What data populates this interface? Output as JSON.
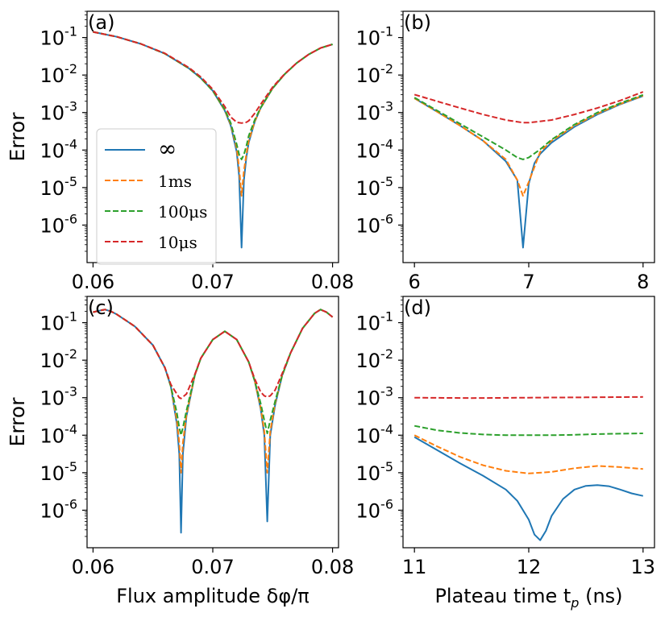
{
  "figure": {
    "y_axis_label": "Error",
    "y_tick_labels": [
      "10-1",
      "10-2",
      "10-3",
      "10-4",
      "10-5",
      "10-6"
    ],
    "legend": [
      {
        "label": "∞",
        "color": "#1f77b4",
        "dashed": false
      },
      {
        "label": "1ms",
        "color": "#ff7f0e",
        "dashed": true
      },
      {
        "label": "100μs",
        "color": "#2ca02c",
        "dashed": true
      },
      {
        "label": "10μs",
        "color": "#d62728",
        "dashed": true
      }
    ]
  },
  "chart_data": [
    {
      "panel": "(a)",
      "type": "line",
      "xlim": [
        0.0595,
        0.0805
      ],
      "ylim_log10": [
        -7.0,
        -0.3
      ],
      "x_ticks": [
        0.06,
        0.07,
        0.08
      ],
      "x_tick_labels": [
        "0.06",
        "0.07",
        "0.08"
      ],
      "xlabel": "",
      "series": [
        {
          "name": "∞",
          "color": "#1f77b4",
          "dash": false,
          "x": [
            0.06,
            0.062,
            0.064,
            0.066,
            0.068,
            0.069,
            0.07,
            0.071,
            0.0715,
            0.072,
            0.0722,
            0.0724,
            0.0726,
            0.0728,
            0.073,
            0.0735,
            0.074,
            0.075,
            0.076,
            0.077,
            0.078,
            0.079,
            0.08
          ],
          "y": [
            -0.85,
            -0.98,
            -1.17,
            -1.43,
            -1.82,
            -2.08,
            -2.42,
            -2.95,
            -3.35,
            -4.05,
            -4.7,
            -6.6,
            -4.8,
            -4.2,
            -3.8,
            -3.25,
            -2.88,
            -2.35,
            -1.98,
            -1.68,
            -1.45,
            -1.28,
            -1.18
          ]
        },
        {
          "name": "1ms",
          "color": "#ff7f0e",
          "dash": true,
          "x": [
            0.06,
            0.062,
            0.064,
            0.066,
            0.068,
            0.069,
            0.07,
            0.071,
            0.0715,
            0.072,
            0.0722,
            0.0724,
            0.0726,
            0.0728,
            0.073,
            0.0735,
            0.074,
            0.075,
            0.076,
            0.077,
            0.078,
            0.079,
            0.08
          ],
          "y": [
            -0.85,
            -0.98,
            -1.17,
            -1.43,
            -1.82,
            -2.08,
            -2.42,
            -2.94,
            -3.32,
            -3.95,
            -4.5,
            -5.22,
            -4.55,
            -4.12,
            -3.75,
            -3.24,
            -2.88,
            -2.35,
            -1.98,
            -1.68,
            -1.45,
            -1.28,
            -1.18
          ]
        },
        {
          "name": "100μs",
          "color": "#2ca02c",
          "dash": true,
          "x": [
            0.06,
            0.062,
            0.064,
            0.066,
            0.068,
            0.069,
            0.07,
            0.071,
            0.0715,
            0.072,
            0.0722,
            0.0724,
            0.0726,
            0.0728,
            0.073,
            0.0735,
            0.074,
            0.075,
            0.076,
            0.077,
            0.078,
            0.079,
            0.08
          ],
          "y": [
            -0.85,
            -0.98,
            -1.17,
            -1.43,
            -1.82,
            -2.08,
            -2.42,
            -2.92,
            -3.28,
            -3.85,
            -4.12,
            -4.25,
            -4.12,
            -3.9,
            -3.62,
            -3.2,
            -2.87,
            -2.35,
            -1.98,
            -1.68,
            -1.45,
            -1.28,
            -1.18
          ]
        },
        {
          "name": "10μs",
          "color": "#d62728",
          "dash": true,
          "x": [
            0.06,
            0.062,
            0.064,
            0.066,
            0.068,
            0.069,
            0.07,
            0.071,
            0.0715,
            0.072,
            0.0724,
            0.0728,
            0.073,
            0.0735,
            0.074,
            0.075,
            0.076,
            0.077,
            0.078,
            0.079,
            0.08
          ],
          "y": [
            -0.85,
            -0.98,
            -1.17,
            -1.42,
            -1.8,
            -2.05,
            -2.38,
            -2.84,
            -3.12,
            -3.26,
            -3.28,
            -3.26,
            -3.22,
            -3.02,
            -2.78,
            -2.32,
            -1.97,
            -1.68,
            -1.45,
            -1.28,
            -1.18
          ]
        }
      ]
    },
    {
      "panel": "(b)",
      "type": "line",
      "xlim": [
        5.9,
        8.1
      ],
      "ylim_log10": [
        -7.0,
        -0.3
      ],
      "x_ticks": [
        6,
        7,
        8
      ],
      "x_tick_labels": [
        "6",
        "7",
        "8"
      ],
      "xlabel": "",
      "series": [
        {
          "name": "∞",
          "color": "#1f77b4",
          "dash": false,
          "x": [
            6.0,
            6.2,
            6.4,
            6.6,
            6.8,
            6.9,
            6.95,
            7.0,
            7.05,
            7.1,
            7.2,
            7.4,
            7.6,
            7.8,
            8.0
          ],
          "y": [
            -2.62,
            -2.98,
            -3.35,
            -3.75,
            -4.3,
            -4.8,
            -6.6,
            -4.9,
            -4.35,
            -4.1,
            -3.8,
            -3.38,
            -3.05,
            -2.78,
            -2.56
          ]
        },
        {
          "name": "1ms",
          "color": "#ff7f0e",
          "dash": true,
          "x": [
            6.0,
            6.2,
            6.4,
            6.6,
            6.8,
            6.9,
            6.95,
            7.0,
            7.1,
            7.2,
            7.4,
            7.6,
            7.8,
            8.0
          ],
          "y": [
            -2.62,
            -2.98,
            -3.35,
            -3.75,
            -4.25,
            -4.8,
            -5.22,
            -4.85,
            -4.05,
            -3.75,
            -3.35,
            -3.03,
            -2.77,
            -2.55
          ]
        },
        {
          "name": "100μs",
          "color": "#2ca02c",
          "dash": true,
          "x": [
            6.0,
            6.2,
            6.4,
            6.6,
            6.8,
            6.9,
            6.95,
            7.0,
            7.1,
            7.2,
            7.4,
            7.6,
            7.8,
            8.0
          ],
          "y": [
            -2.6,
            -2.95,
            -3.3,
            -3.65,
            -4.0,
            -4.2,
            -4.25,
            -4.2,
            -3.98,
            -3.72,
            -3.32,
            -3.0,
            -2.75,
            -2.53
          ]
        },
        {
          "name": "10μs",
          "color": "#d62728",
          "dash": true,
          "x": [
            6.0,
            6.2,
            6.4,
            6.6,
            6.8,
            6.95,
            7.0,
            7.2,
            7.4,
            7.6,
            7.8,
            8.0
          ],
          "y": [
            -2.52,
            -2.7,
            -2.88,
            -3.05,
            -3.2,
            -3.27,
            -3.27,
            -3.2,
            -3.05,
            -2.88,
            -2.68,
            -2.45
          ]
        }
      ]
    },
    {
      "panel": "(c)",
      "type": "line",
      "xlim": [
        0.0595,
        0.0805
      ],
      "ylim_log10": [
        -7.0,
        -0.3
      ],
      "x_ticks": [
        0.06,
        0.07,
        0.08
      ],
      "x_tick_labels": [
        "0.06",
        "0.07",
        "0.08"
      ],
      "xlabel": "Flux amplitude δφ/π",
      "series": [
        {
          "name": "∞",
          "color": "#1f77b4",
          "dash": false,
          "x": [
            0.06,
            0.0605,
            0.061,
            0.0615,
            0.062,
            0.0635,
            0.065,
            0.066,
            0.0665,
            0.067,
            0.0672,
            0.06735,
            0.0675,
            0.0678,
            0.0685,
            0.069,
            0.07,
            0.071,
            0.072,
            0.073,
            0.0735,
            0.074,
            0.0743,
            0.07455,
            0.0748,
            0.0752,
            0.0758,
            0.0765,
            0.0775,
            0.0785,
            0.079,
            0.0795,
            0.08
          ],
          "y": [
            -0.72,
            -0.68,
            -0.65,
            -0.7,
            -0.78,
            -1.1,
            -1.6,
            -2.2,
            -2.7,
            -3.7,
            -4.5,
            -6.6,
            -4.5,
            -3.5,
            -2.4,
            -1.95,
            -1.45,
            -1.23,
            -1.45,
            -2.05,
            -2.55,
            -3.3,
            -4.0,
            -6.3,
            -4.0,
            -3.2,
            -2.4,
            -1.8,
            -1.15,
            -0.75,
            -0.65,
            -0.72,
            -0.85
          ]
        },
        {
          "name": "1ms",
          "color": "#ff7f0e",
          "dash": true,
          "x": [
            0.06,
            0.0605,
            0.061,
            0.0615,
            0.062,
            0.0635,
            0.065,
            0.066,
            0.0665,
            0.067,
            0.0672,
            0.06735,
            0.0675,
            0.0678,
            0.0685,
            0.069,
            0.07,
            0.071,
            0.072,
            0.073,
            0.0735,
            0.074,
            0.0743,
            0.07455,
            0.0748,
            0.0752,
            0.0758,
            0.0765,
            0.0775,
            0.0785,
            0.079,
            0.0795,
            0.08
          ],
          "y": [
            -0.72,
            -0.68,
            -0.65,
            -0.7,
            -0.78,
            -1.1,
            -1.6,
            -2.2,
            -2.7,
            -3.6,
            -4.2,
            -5.0,
            -4.2,
            -3.45,
            -2.4,
            -1.95,
            -1.45,
            -1.23,
            -1.45,
            -2.05,
            -2.55,
            -3.25,
            -3.9,
            -5.0,
            -3.9,
            -3.15,
            -2.4,
            -1.8,
            -1.15,
            -0.75,
            -0.65,
            -0.72,
            -0.85
          ]
        },
        {
          "name": "100μs",
          "color": "#2ca02c",
          "dash": true,
          "x": [
            0.06,
            0.0605,
            0.061,
            0.0615,
            0.062,
            0.0635,
            0.065,
            0.066,
            0.0665,
            0.067,
            0.0672,
            0.06735,
            0.0675,
            0.0678,
            0.0685,
            0.069,
            0.07,
            0.071,
            0.072,
            0.073,
            0.0735,
            0.074,
            0.0743,
            0.07455,
            0.0748,
            0.0752,
            0.0758,
            0.0765,
            0.0775,
            0.0785,
            0.079,
            0.0795,
            0.08
          ],
          "y": [
            -0.72,
            -0.68,
            -0.65,
            -0.7,
            -0.78,
            -1.1,
            -1.6,
            -2.2,
            -2.7,
            -3.4,
            -3.8,
            -4.0,
            -3.8,
            -3.35,
            -2.4,
            -1.95,
            -1.45,
            -1.23,
            -1.45,
            -2.05,
            -2.55,
            -3.15,
            -3.6,
            -3.95,
            -3.6,
            -3.1,
            -2.4,
            -1.8,
            -1.15,
            -0.75,
            -0.65,
            -0.72,
            -0.85
          ]
        },
        {
          "name": "10μs",
          "color": "#d62728",
          "dash": true,
          "x": [
            0.06,
            0.0605,
            0.061,
            0.0615,
            0.062,
            0.0635,
            0.065,
            0.066,
            0.0665,
            0.067,
            0.0672,
            0.06735,
            0.0675,
            0.0678,
            0.0685,
            0.069,
            0.07,
            0.071,
            0.072,
            0.073,
            0.0735,
            0.074,
            0.0743,
            0.07455,
            0.0748,
            0.0752,
            0.0758,
            0.0765,
            0.0775,
            0.0785,
            0.079,
            0.0795,
            0.08
          ],
          "y": [
            -0.72,
            -0.68,
            -0.65,
            -0.7,
            -0.78,
            -1.1,
            -1.6,
            -2.2,
            -2.65,
            -2.9,
            -3.0,
            -3.02,
            -2.98,
            -2.9,
            -2.38,
            -1.95,
            -1.45,
            -1.23,
            -1.45,
            -2.05,
            -2.5,
            -2.85,
            -2.95,
            -2.98,
            -2.95,
            -2.8,
            -2.35,
            -1.8,
            -1.15,
            -0.75,
            -0.65,
            -0.72,
            -0.85
          ]
        }
      ]
    },
    {
      "panel": "(d)",
      "type": "line",
      "xlim": [
        10.9,
        13.1
      ],
      "ylim_log10": [
        -7.0,
        -0.3
      ],
      "x_ticks": [
        11,
        12,
        13
      ],
      "x_tick_labels": [
        "11",
        "12",
        "13"
      ],
      "xlabel": "Plateau time t_p (ns)",
      "series": [
        {
          "name": "∞",
          "color": "#1f77b4",
          "dash": false,
          "x": [
            11.0,
            11.2,
            11.4,
            11.6,
            11.8,
            11.9,
            12.0,
            12.05,
            12.1,
            12.15,
            12.2,
            12.3,
            12.4,
            12.5,
            12.6,
            12.7,
            12.8,
            12.9,
            13.0
          ],
          "y": [
            -4.05,
            -4.4,
            -4.75,
            -5.08,
            -5.45,
            -5.75,
            -6.25,
            -6.65,
            -6.8,
            -6.55,
            -6.15,
            -5.7,
            -5.45,
            -5.35,
            -5.33,
            -5.36,
            -5.45,
            -5.55,
            -5.62
          ]
        },
        {
          "name": "1ms",
          "color": "#ff7f0e",
          "dash": true,
          "x": [
            11.0,
            11.2,
            11.4,
            11.6,
            11.8,
            12.0,
            12.2,
            12.4,
            12.6,
            12.8,
            13.0
          ],
          "y": [
            -4.0,
            -4.3,
            -4.58,
            -4.8,
            -4.95,
            -5.02,
            -4.98,
            -4.88,
            -4.82,
            -4.85,
            -4.9
          ]
        },
        {
          "name": "100μs",
          "color": "#2ca02c",
          "dash": true,
          "x": [
            11.0,
            11.2,
            11.4,
            11.6,
            11.8,
            12.0,
            12.2,
            12.4,
            12.6,
            12.8,
            13.0
          ],
          "y": [
            -3.75,
            -3.87,
            -3.94,
            -3.98,
            -4.0,
            -4.0,
            -4.0,
            -3.99,
            -3.97,
            -3.96,
            -3.95
          ]
        },
        {
          "name": "10μs",
          "color": "#d62728",
          "dash": true,
          "x": [
            11.0,
            11.5,
            12.0,
            12.5,
            13.0
          ],
          "y": [
            -3.0,
            -3.01,
            -3.0,
            -2.99,
            -2.98
          ]
        }
      ]
    }
  ]
}
